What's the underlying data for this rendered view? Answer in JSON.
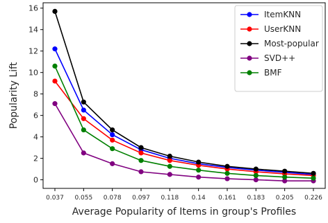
{
  "chart_data": {
    "type": "line",
    "title": "",
    "xlabel": "Average Popularity of Items in group's Profiles",
    "ylabel": "Popularity Lift",
    "categories": [
      "0.037",
      "0.055",
      "0.078",
      "0.097",
      "0.118",
      "0.14",
      "0.161",
      "0.183",
      "0.205",
      "0.226"
    ],
    "ylim": [
      -0.8,
      16.5
    ],
    "yticks": [
      "0",
      "2",
      "4",
      "6",
      "8",
      "10",
      "12",
      "14",
      "16"
    ],
    "grid": false,
    "legend_position": "top-right",
    "series": [
      {
        "name": "ItemKNN",
        "color": "#0000ff",
        "values": [
          12.2,
          6.5,
          4.2,
          2.8,
          2.0,
          1.5,
          1.15,
          0.9,
          0.7,
          0.5
        ]
      },
      {
        "name": "UserKNN",
        "color": "#ff0000",
        "values": [
          9.2,
          5.7,
          3.7,
          2.5,
          1.8,
          1.35,
          1.0,
          0.75,
          0.55,
          0.4
        ]
      },
      {
        "name": "Most-popular",
        "color": "#000000",
        "values": [
          15.7,
          7.25,
          4.65,
          3.0,
          2.2,
          1.65,
          1.25,
          1.0,
          0.8,
          0.6
        ]
      },
      {
        "name": "SVD++",
        "color": "#800080",
        "values": [
          7.1,
          2.5,
          1.5,
          0.75,
          0.5,
          0.25,
          0.1,
          0.0,
          -0.1,
          -0.1
        ]
      },
      {
        "name": "BMF",
        "color": "#008000",
        "values": [
          10.6,
          4.65,
          2.9,
          1.8,
          1.25,
          0.9,
          0.6,
          0.4,
          0.25,
          0.15
        ]
      }
    ]
  }
}
